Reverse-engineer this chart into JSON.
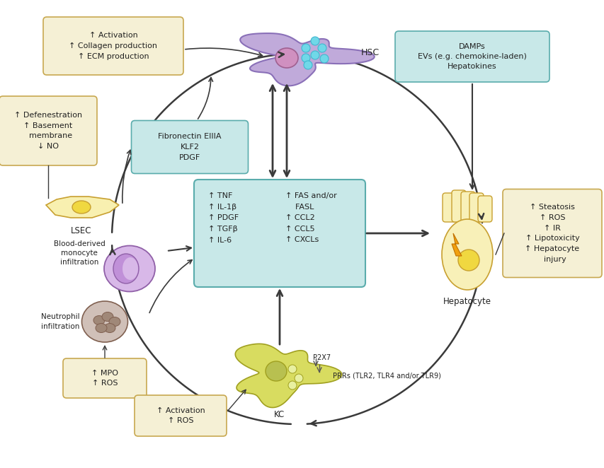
{
  "bg_color": "#ffffff",
  "arrow_color": "#3a3a3a",
  "box_teal_fc": "#c8e8e8",
  "box_teal_ec": "#5aacac",
  "box_yellow_fc": "#f5f0d5",
  "box_yellow_ec": "#c8a850",
  "hsc_fc": "#c0aada",
  "hsc_ec": "#8a70b8",
  "hsc_nuc_fc": "#d090c0",
  "hsc_nuc_ec": "#a06090",
  "hsc_dot_fc": "#70d8e8",
  "hsc_dot_ec": "#40b8d0",
  "lsec_fc": "#f8f0b0",
  "lsec_ec": "#c8a030",
  "lsec_nuc_fc": "#f0d840",
  "mono_fc": "#d8b8e8",
  "mono_ec": "#9060a8",
  "mono_nuc_fc": "#c090d8",
  "neut_fc": "#d0c0b8",
  "neut_ec": "#806050",
  "neut_nuc_fc": "#a08878",
  "kc_fc": "#d8dc60",
  "kc_ec": "#a0a020",
  "kc_nuc_fc": "#b8c050",
  "kc_vac_fc": "#e8f0a0",
  "hep_fc": "#f8f0b8",
  "hep_ec": "#c8a030",
  "hep_nuc_fc": "#f0d840",
  "bolt_fc": "#f0a010",
  "bolt_ec": "#c07000",
  "text_color": "#222222",
  "hsc_box_text": "↑ Activation\n↑ Collagen production\n↑ ECM production",
  "fib_box_text": "Fibronectin EIIIA\nKLF2\nPDGF",
  "lsec_box_text": "↑ Defenestration\n↑ Basement\n  membrane\n↓ NO",
  "damps_box_text": "DAMPs\nEVs (e.g. chemokine-laden)\nHepatokines",
  "hep_box_text": "↑ Steatosis\n↑ ROS\n↑ IR\n↑ Lipotoxicity\n↑ Hepatocyte\n  injury",
  "mpo_box_text": "↑ MPO\n↑ ROS",
  "kc_box_text": "↑ Activation\n↑ ROS",
  "central_left": "↑ TNF\n↑ IL-1β\n↑ PDGF\n↑ TGFβ\n↑ IL-6",
  "central_right": "↑ FAS and/or\n    FASL\n↑ CCL2\n↑ CCL5\n↑ CXCLs"
}
